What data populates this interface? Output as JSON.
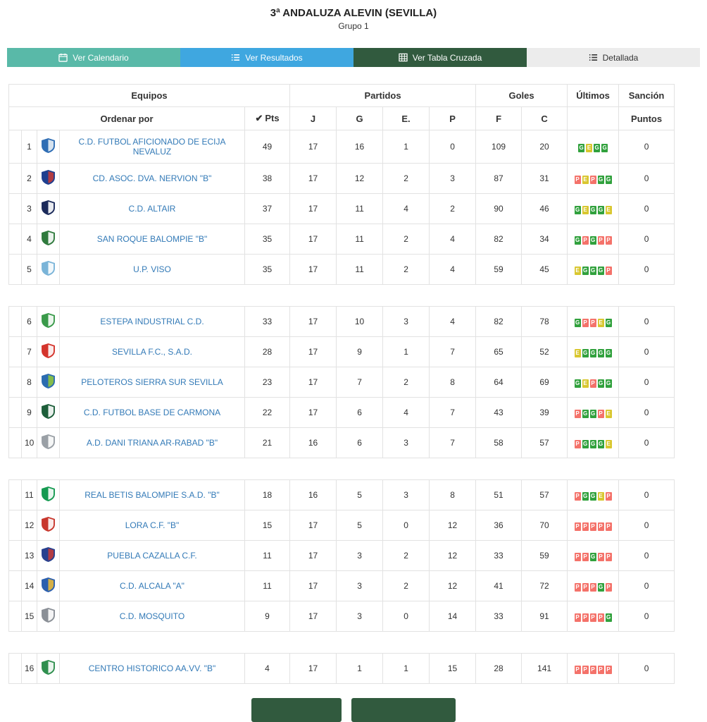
{
  "page": {
    "title": "3ª ANDALUZA ALEVIN (SEVILLA)",
    "subtitle": "Grupo 1"
  },
  "tabs": [
    {
      "label": "Ver Calendario",
      "icon": "calendar-icon",
      "bg": "#59b9a8",
      "fg": "#ffffff"
    },
    {
      "label": "Ver Resultados",
      "icon": "results-list-icon",
      "bg": "#3fa7e0",
      "fg": "#ffffff"
    },
    {
      "label": "Ver Tabla Cruzada",
      "icon": "cross-table-icon",
      "bg": "#315a3e",
      "fg": "#ffffff"
    },
    {
      "label": "Detallada",
      "icon": "detailed-list-icon",
      "bg": "#ececec",
      "fg": "#333333"
    }
  ],
  "table": {
    "headers": {
      "equipos": "Equipos",
      "partidos": "Partidos",
      "goles": "Goles",
      "ultimos": "Últimos",
      "sancion": "Sanción"
    },
    "subheaders": {
      "ordenar_por": "Ordenar por",
      "pts": "Pts",
      "j": "J",
      "g": "G",
      "e": "E.",
      "p": "P",
      "f": "F",
      "c": "C",
      "puntos": "Puntos"
    },
    "sort_glyph": "✔",
    "link_color": "#337ab7",
    "form_colors": {
      "G": "#31a13d",
      "E": "#d9c730",
      "P": "#f4726a"
    },
    "rows": [
      {
        "pos": "1",
        "team": "C.D. FUTBOL AFICIONADO DE ECIJA NEVALUZ",
        "pts": "49",
        "j": "17",
        "g": "16",
        "e": "1",
        "p": "0",
        "f": "109",
        "c": "20",
        "form": [
          "G",
          "E",
          "G",
          "G"
        ],
        "sancion": "0",
        "crest": [
          "#2e6db4",
          "#e8eef5"
        ],
        "gap_after": false
      },
      {
        "pos": "2",
        "team": "CD. ASOC. DVA. NERVION \"B\"",
        "pts": "38",
        "j": "17",
        "g": "12",
        "e": "2",
        "p": "3",
        "f": "87",
        "c": "31",
        "form": [
          "P",
          "E",
          "P",
          "G",
          "G"
        ],
        "sancion": "0",
        "crest": [
          "#1f3f8f",
          "#c23b3b"
        ],
        "gap_after": false
      },
      {
        "pos": "3",
        "team": "C.D. ALTAIR",
        "pts": "37",
        "j": "17",
        "g": "11",
        "e": "4",
        "p": "2",
        "f": "90",
        "c": "46",
        "form": [
          "G",
          "E",
          "G",
          "G",
          "E"
        ],
        "sancion": "0",
        "crest": [
          "#1b2a5a",
          "#ffffff"
        ],
        "gap_after": false
      },
      {
        "pos": "4",
        "team": "SAN ROQUE BALOMPIE \"B\"",
        "pts": "35",
        "j": "17",
        "g": "11",
        "e": "2",
        "p": "4",
        "f": "82",
        "c": "34",
        "form": [
          "G",
          "P",
          "G",
          "P",
          "P"
        ],
        "sancion": "0",
        "crest": [
          "#2f7a3d",
          "#ffffff"
        ],
        "gap_after": false
      },
      {
        "pos": "5",
        "team": "U.P. VISO",
        "pts": "35",
        "j": "17",
        "g": "11",
        "e": "2",
        "p": "4",
        "f": "59",
        "c": "45",
        "form": [
          "E",
          "G",
          "G",
          "G",
          "P"
        ],
        "sancion": "0",
        "crest": [
          "#7ab4d8",
          "#ffffff"
        ],
        "gap_after": true
      },
      {
        "pos": "6",
        "team": "ESTEPA INDUSTRIAL C.D.",
        "pts": "33",
        "j": "17",
        "g": "10",
        "e": "3",
        "p": "4",
        "f": "82",
        "c": "78",
        "form": [
          "G",
          "P",
          "P",
          "E",
          "G"
        ],
        "sancion": "0",
        "crest": [
          "#3a9a4a",
          "#ffffff"
        ],
        "gap_after": false
      },
      {
        "pos": "7",
        "team": "SEVILLA F.C., S.A.D.",
        "pts": "28",
        "j": "17",
        "g": "9",
        "e": "1",
        "p": "7",
        "f": "65",
        "c": "52",
        "form": [
          "E",
          "G",
          "G",
          "G",
          "G"
        ],
        "sancion": "0",
        "crest": [
          "#d4342c",
          "#ffffff"
        ],
        "gap_after": false
      },
      {
        "pos": "8",
        "team": "PELOTEROS SIERRA SUR SEVILLA",
        "pts": "23",
        "j": "17",
        "g": "7",
        "e": "2",
        "p": "8",
        "f": "64",
        "c": "69",
        "form": [
          "G",
          "E",
          "P",
          "G",
          "G"
        ],
        "sancion": "0",
        "crest": [
          "#2b6cb0",
          "#8fc640"
        ],
        "gap_after": false
      },
      {
        "pos": "9",
        "team": "C.D. FUTBOL BASE DE CARMONA",
        "pts": "22",
        "j": "17",
        "g": "6",
        "e": "4",
        "p": "7",
        "f": "43",
        "c": "39",
        "form": [
          "P",
          "G",
          "G",
          "P",
          "E"
        ],
        "sancion": "0",
        "crest": [
          "#1d5e3a",
          "#ffffff"
        ],
        "gap_after": false
      },
      {
        "pos": "10",
        "team": "A.D. DANI TRIANA AR-RABAD \"B\"",
        "pts": "21",
        "j": "16",
        "g": "6",
        "e": "3",
        "p": "7",
        "f": "58",
        "c": "57",
        "form": [
          "P",
          "G",
          "G",
          "G",
          "E"
        ],
        "sancion": "0",
        "crest": [
          "#9aa0a6",
          "#ffffff"
        ],
        "gap_after": true
      },
      {
        "pos": "11",
        "team": "REAL BETIS BALOMPIE S.A.D. \"B\"",
        "pts": "18",
        "j": "16",
        "g": "5",
        "e": "3",
        "p": "8",
        "f": "51",
        "c": "57",
        "form": [
          "P",
          "G",
          "G",
          "E",
          "P"
        ],
        "sancion": "0",
        "crest": [
          "#159a51",
          "#ffffff"
        ],
        "gap_after": false
      },
      {
        "pos": "12",
        "team": "LORA C.F. \"B\"",
        "pts": "15",
        "j": "17",
        "g": "5",
        "e": "0",
        "p": "12",
        "f": "36",
        "c": "70",
        "form": [
          "P",
          "P",
          "P",
          "P",
          "P"
        ],
        "sancion": "0",
        "crest": [
          "#c8372d",
          "#ffffff"
        ],
        "gap_after": false
      },
      {
        "pos": "13",
        "team": "PUEBLA CAZALLA C.F.",
        "pts": "11",
        "j": "17",
        "g": "3",
        "e": "2",
        "p": "12",
        "f": "33",
        "c": "59",
        "form": [
          "P",
          "P",
          "G",
          "P",
          "P"
        ],
        "sancion": "0",
        "crest": [
          "#27408f",
          "#c23b3b"
        ],
        "gap_after": false
      },
      {
        "pos": "14",
        "team": "C.D. ALCALA \"A\"",
        "pts": "11",
        "j": "17",
        "g": "3",
        "e": "2",
        "p": "12",
        "f": "41",
        "c": "72",
        "form": [
          "P",
          "P",
          "P",
          "G",
          "P"
        ],
        "sancion": "0",
        "crest": [
          "#2b5fae",
          "#e8b93c"
        ],
        "gap_after": false
      },
      {
        "pos": "15",
        "team": "C.D. MOSQUITO",
        "pts": "9",
        "j": "17",
        "g": "3",
        "e": "0",
        "p": "14",
        "f": "33",
        "c": "91",
        "form": [
          "P",
          "P",
          "P",
          "P",
          "G"
        ],
        "sancion": "0",
        "crest": [
          "#8a8f96",
          "#ffffff"
        ],
        "gap_after": true
      },
      {
        "pos": "16",
        "team": "CENTRO HISTORICO AA.VV. \"B\"",
        "pts": "4",
        "j": "17",
        "g": "1",
        "e": "1",
        "p": "15",
        "f": "28",
        "c": "141",
        "form": [
          "P",
          "P",
          "P",
          "P",
          "P"
        ],
        "sancion": "0",
        "crest": [
          "#2f8f4e",
          "#ffffff"
        ],
        "gap_after": false
      }
    ]
  },
  "footer": {
    "buttons": [
      {
        "label": "",
        "bg": "#315a3e"
      },
      {
        "label": "",
        "bg": "#315a3e"
      }
    ]
  }
}
